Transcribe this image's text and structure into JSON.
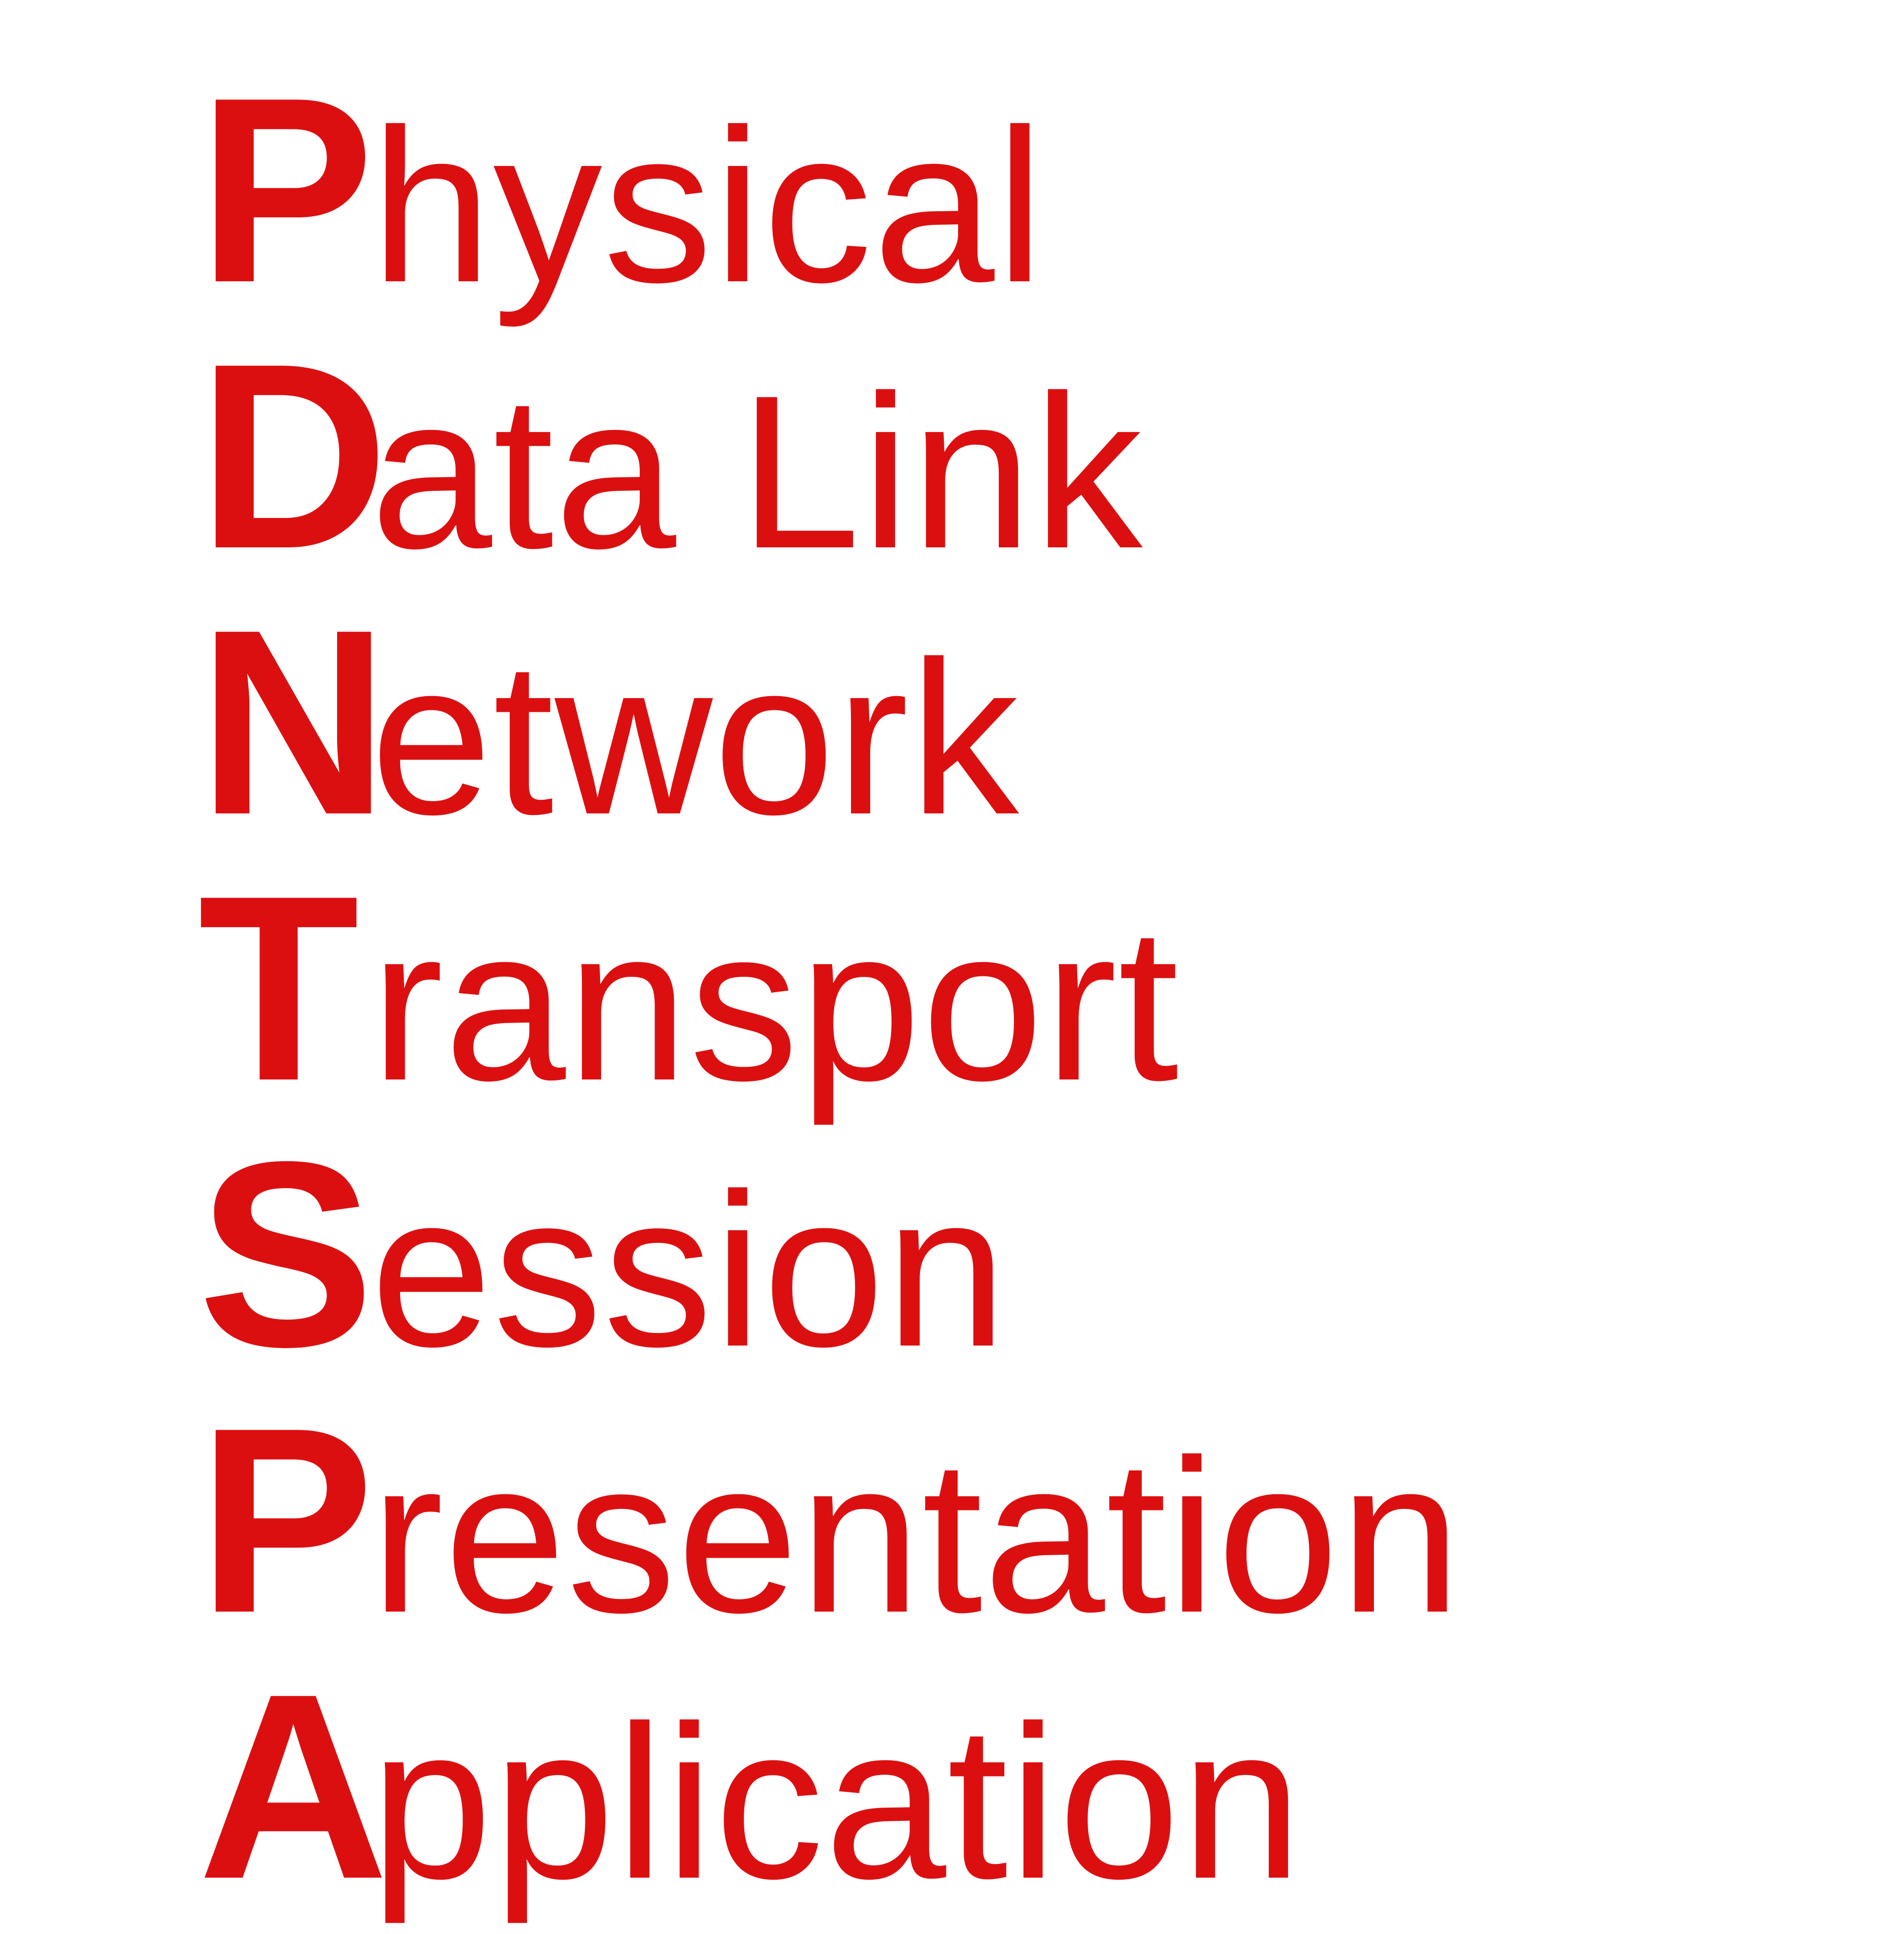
{
  "colors": {
    "text": "#dc0f10",
    "background": "#ffffff"
  },
  "layers": [
    {
      "initial": "P",
      "rest": "hysical"
    },
    {
      "initial": "D",
      "rest": "ata Link"
    },
    {
      "initial": "N",
      "rest": "etwork"
    },
    {
      "initial": "T",
      "rest": "ransport"
    },
    {
      "initial": "S",
      "rest": "ession"
    },
    {
      "initial": "P",
      "rest": "resentation"
    },
    {
      "initial": "A",
      "rest": "pplication"
    }
  ]
}
